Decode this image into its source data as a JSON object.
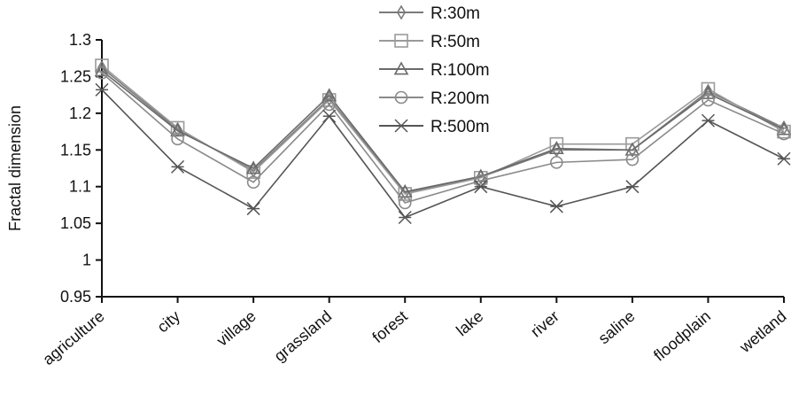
{
  "chart_data": {
    "type": "line",
    "ylabel": "Fractal dimension",
    "xlabel": "",
    "ylim": [
      0.95,
      1.3
    ],
    "yticks": [
      0.95,
      1,
      1.05,
      1.1,
      1.15,
      1.2,
      1.25,
      1.3
    ],
    "ytick_labels": [
      "0.95",
      "1",
      "1.05",
      "1.1",
      "1.15",
      "1.2",
      "1.25",
      "1.3"
    ],
    "categories": [
      "agriculture",
      "city",
      "village",
      "grassland",
      "forest",
      "lake",
      "river",
      "saline",
      "floodplain",
      "wetland"
    ],
    "grid": false,
    "legend_position": "top-right",
    "series": [
      {
        "name": "R:30m",
        "marker": "diamond",
        "color": "#7a7a7a",
        "values": [
          1.262,
          1.178,
          1.122,
          1.22,
          1.092,
          1.113,
          1.15,
          1.15,
          1.23,
          1.18
        ]
      },
      {
        "name": "R:50m",
        "marker": "square",
        "color": "#9a9a9a",
        "values": [
          1.265,
          1.18,
          1.12,
          1.218,
          1.09,
          1.112,
          1.158,
          1.158,
          1.233,
          1.175
        ]
      },
      {
        "name": "R:100m",
        "marker": "triangle",
        "color": "#6a6a6a",
        "values": [
          1.258,
          1.176,
          1.125,
          1.224,
          1.093,
          1.114,
          1.152,
          1.15,
          1.227,
          1.178
        ]
      },
      {
        "name": "R:200m",
        "marker": "circle",
        "color": "#8a8a8a",
        "values": [
          1.255,
          1.165,
          1.106,
          1.212,
          1.078,
          1.108,
          1.133,
          1.137,
          1.218,
          1.172
        ]
      },
      {
        "name": "R:500m",
        "marker": "asterisk",
        "color": "#555555",
        "values": [
          1.232,
          1.127,
          1.07,
          1.196,
          1.058,
          1.1,
          1.073,
          1.1,
          1.19,
          1.138
        ]
      }
    ]
  }
}
